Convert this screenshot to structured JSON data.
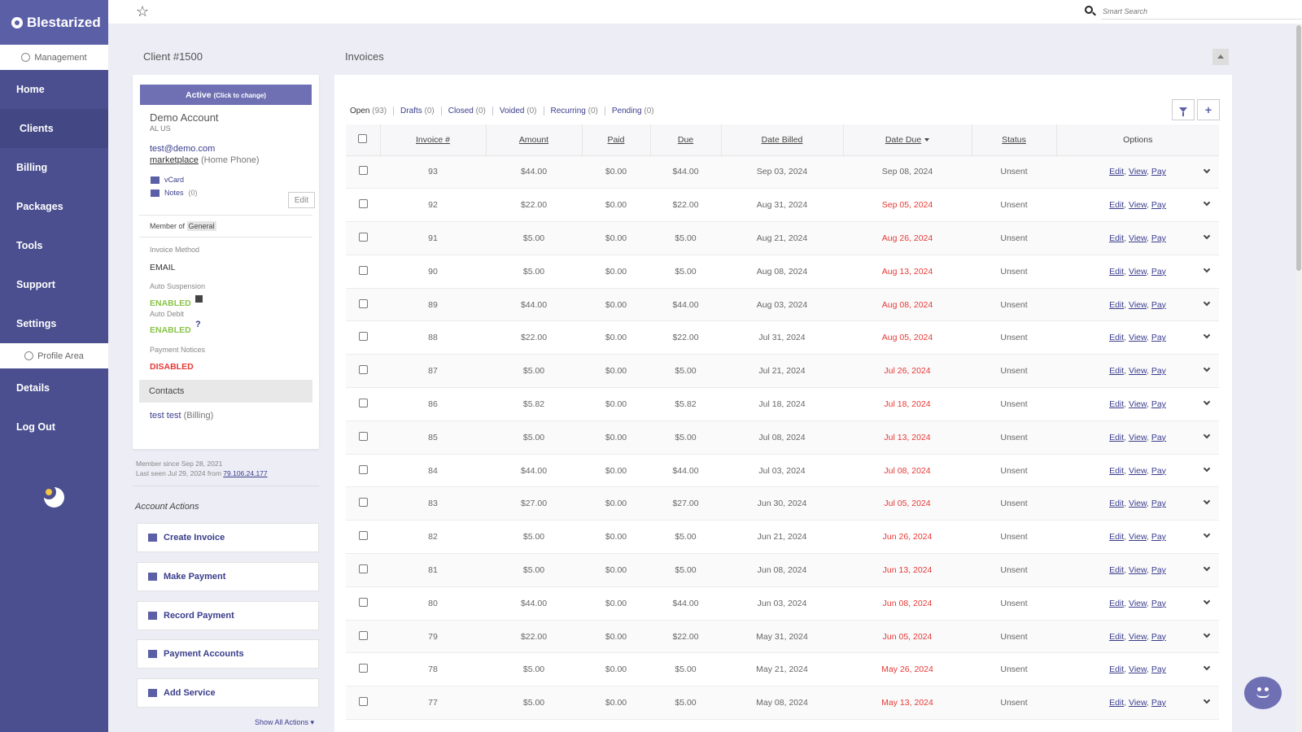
{
  "brand": {
    "name": "Blestarized"
  },
  "sidebar": {
    "management_label": "Management",
    "items": [
      {
        "label": "Home"
      },
      {
        "label": "Clients"
      },
      {
        "label": "Billing"
      },
      {
        "label": "Packages"
      },
      {
        "label": "Tools"
      },
      {
        "label": "Support"
      },
      {
        "label": "Settings"
      }
    ],
    "profile_label": "Profile Area",
    "profile_items": [
      {
        "label": "Details"
      },
      {
        "label": "Log Out"
      }
    ]
  },
  "topbar": {
    "search_placeholder": "Smart Search"
  },
  "client": {
    "title": "Client #1500",
    "status_button": "Active",
    "status_hint": "(Click to change)",
    "name": "Demo Account",
    "location": "AL US",
    "email": "test@demo.com",
    "phone_value": "marketplace",
    "phone_type": "(Home Phone)",
    "vcard_label": "vCard",
    "notes_label": "Notes",
    "notes_count": "(0)",
    "edit_label": "Edit",
    "member_of_label": "Member of",
    "member_group": "General",
    "invoice_method_label": "Invoice Method",
    "invoice_method": "EMAIL",
    "auto_suspension_label": "Auto Suspension",
    "auto_suspension": "ENABLED",
    "auto_debit_label": "Auto Debit",
    "auto_debit": "ENABLED",
    "auto_debit_help": "?",
    "payment_notices_label": "Payment Notices",
    "payment_notices": "DISABLED",
    "contacts_label": "Contacts",
    "contact_name": "test test",
    "contact_role": "(Billing)",
    "member_since": "Member since Sep 28, 2021",
    "last_seen": "Last seen Jul 29, 2024 from",
    "last_ip": "79.106.24.177"
  },
  "account_actions": {
    "title": "Account Actions",
    "items": [
      {
        "label": "Create Invoice"
      },
      {
        "label": "Make Payment"
      },
      {
        "label": "Record Payment"
      },
      {
        "label": "Payment Accounts"
      },
      {
        "label": "Add Service"
      }
    ],
    "show_all": "Show All Actions ▾"
  },
  "invoices": {
    "title": "Invoices",
    "tabs": [
      {
        "label": "Open",
        "count": "(93)"
      },
      {
        "label": "Drafts",
        "count": "(0)"
      },
      {
        "label": "Closed",
        "count": "(0)"
      },
      {
        "label": "Voided",
        "count": "(0)"
      },
      {
        "label": "Recurring",
        "count": "(0)"
      },
      {
        "label": "Pending",
        "count": "(0)"
      }
    ],
    "columns": [
      "Invoice #",
      "Amount",
      "Paid",
      "Due",
      "Date Billed",
      "Date Due",
      "Status",
      "Options"
    ],
    "edit_label": "Edit",
    "view_label": "View",
    "pay_label": "Pay",
    "rows": [
      {
        "num": "93",
        "amount": "$44.00",
        "paid": "$0.00",
        "due": "$44.00",
        "billed": "Sep 03, 2024",
        "date_due": "Sep 08, 2024",
        "overdue": false,
        "status": "Unsent"
      },
      {
        "num": "92",
        "amount": "$22.00",
        "paid": "$0.00",
        "due": "$22.00",
        "billed": "Aug 31, 2024",
        "date_due": "Sep 05, 2024",
        "overdue": true,
        "status": "Unsent"
      },
      {
        "num": "91",
        "amount": "$5.00",
        "paid": "$0.00",
        "due": "$5.00",
        "billed": "Aug 21, 2024",
        "date_due": "Aug 26, 2024",
        "overdue": true,
        "status": "Unsent"
      },
      {
        "num": "90",
        "amount": "$5.00",
        "paid": "$0.00",
        "due": "$5.00",
        "billed": "Aug 08, 2024",
        "date_due": "Aug 13, 2024",
        "overdue": true,
        "status": "Unsent"
      },
      {
        "num": "89",
        "amount": "$44.00",
        "paid": "$0.00",
        "due": "$44.00",
        "billed": "Aug 03, 2024",
        "date_due": "Aug 08, 2024",
        "overdue": true,
        "status": "Unsent"
      },
      {
        "num": "88",
        "amount": "$22.00",
        "paid": "$0.00",
        "due": "$22.00",
        "billed": "Jul 31, 2024",
        "date_due": "Aug 05, 2024",
        "overdue": true,
        "status": "Unsent"
      },
      {
        "num": "87",
        "amount": "$5.00",
        "paid": "$0.00",
        "due": "$5.00",
        "billed": "Jul 21, 2024",
        "date_due": "Jul 26, 2024",
        "overdue": true,
        "status": "Unsent"
      },
      {
        "num": "86",
        "amount": "$5.82",
        "paid": "$0.00",
        "due": "$5.82",
        "billed": "Jul 18, 2024",
        "date_due": "Jul 18, 2024",
        "overdue": true,
        "status": "Unsent"
      },
      {
        "num": "85",
        "amount": "$5.00",
        "paid": "$0.00",
        "due": "$5.00",
        "billed": "Jul 08, 2024",
        "date_due": "Jul 13, 2024",
        "overdue": true,
        "status": "Unsent"
      },
      {
        "num": "84",
        "amount": "$44.00",
        "paid": "$0.00",
        "due": "$44.00",
        "billed": "Jul 03, 2024",
        "date_due": "Jul 08, 2024",
        "overdue": true,
        "status": "Unsent"
      },
      {
        "num": "83",
        "amount": "$27.00",
        "paid": "$0.00",
        "due": "$27.00",
        "billed": "Jun 30, 2024",
        "date_due": "Jul 05, 2024",
        "overdue": true,
        "status": "Unsent"
      },
      {
        "num": "82",
        "amount": "$5.00",
        "paid": "$0.00",
        "due": "$5.00",
        "billed": "Jun 21, 2024",
        "date_due": "Jun 26, 2024",
        "overdue": true,
        "status": "Unsent"
      },
      {
        "num": "81",
        "amount": "$5.00",
        "paid": "$0.00",
        "due": "$5.00",
        "billed": "Jun 08, 2024",
        "date_due": "Jun 13, 2024",
        "overdue": true,
        "status": "Unsent"
      },
      {
        "num": "80",
        "amount": "$44.00",
        "paid": "$0.00",
        "due": "$44.00",
        "billed": "Jun 03, 2024",
        "date_due": "Jun 08, 2024",
        "overdue": true,
        "status": "Unsent"
      },
      {
        "num": "79",
        "amount": "$22.00",
        "paid": "$0.00",
        "due": "$22.00",
        "billed": "May 31, 2024",
        "date_due": "Jun 05, 2024",
        "overdue": true,
        "status": "Unsent"
      },
      {
        "num": "78",
        "amount": "$5.00",
        "paid": "$0.00",
        "due": "$5.00",
        "billed": "May 21, 2024",
        "date_due": "May 26, 2024",
        "overdue": true,
        "status": "Unsent"
      },
      {
        "num": "77",
        "amount": "$5.00",
        "paid": "$0.00",
        "due": "$5.00",
        "billed": "May 08, 2024",
        "date_due": "May 13, 2024",
        "overdue": true,
        "status": "Unsent"
      }
    ]
  },
  "colors": {
    "sidebar": "#4b4f8f",
    "accent": "#6e70b3",
    "link": "#3a3d8c",
    "overdue": "#e53935",
    "enabled": "#8bc34a"
  }
}
